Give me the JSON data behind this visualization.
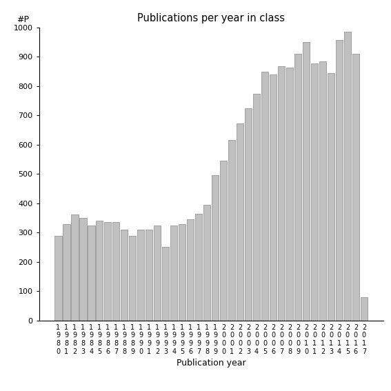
{
  "title": "Publications per year in class",
  "xlabel": "Publication year",
  "ylabel": "#P",
  "years": [
    1980,
    1981,
    1982,
    1983,
    1984,
    1985,
    1986,
    1987,
    1988,
    1989,
    1990,
    1991,
    1992,
    1993,
    1994,
    1995,
    1996,
    1997,
    1998,
    1999,
    2000,
    2001,
    2002,
    2003,
    2004,
    2005,
    2006,
    2007,
    2008,
    2009,
    2010,
    2011,
    2012,
    2013,
    2014,
    2015,
    2016,
    2017
  ],
  "values": [
    288,
    330,
    363,
    350,
    325,
    340,
    335,
    335,
    310,
    290,
    310,
    310,
    325,
    252,
    325,
    328,
    345,
    365,
    395,
    497,
    545,
    615,
    673,
    725,
    773,
    848,
    840,
    868,
    863,
    910,
    950,
    877,
    885,
    845,
    958,
    985,
    910,
    80
  ],
  "bar_color": "#c0c0c0",
  "bar_edge_color": "#888888",
  "ylim": [
    0,
    1000
  ],
  "yticks": [
    0,
    100,
    200,
    300,
    400,
    500,
    600,
    700,
    800,
    900,
    1000
  ],
  "bg_color": "#ffffff",
  "fig_bg_color": "#ffffff"
}
